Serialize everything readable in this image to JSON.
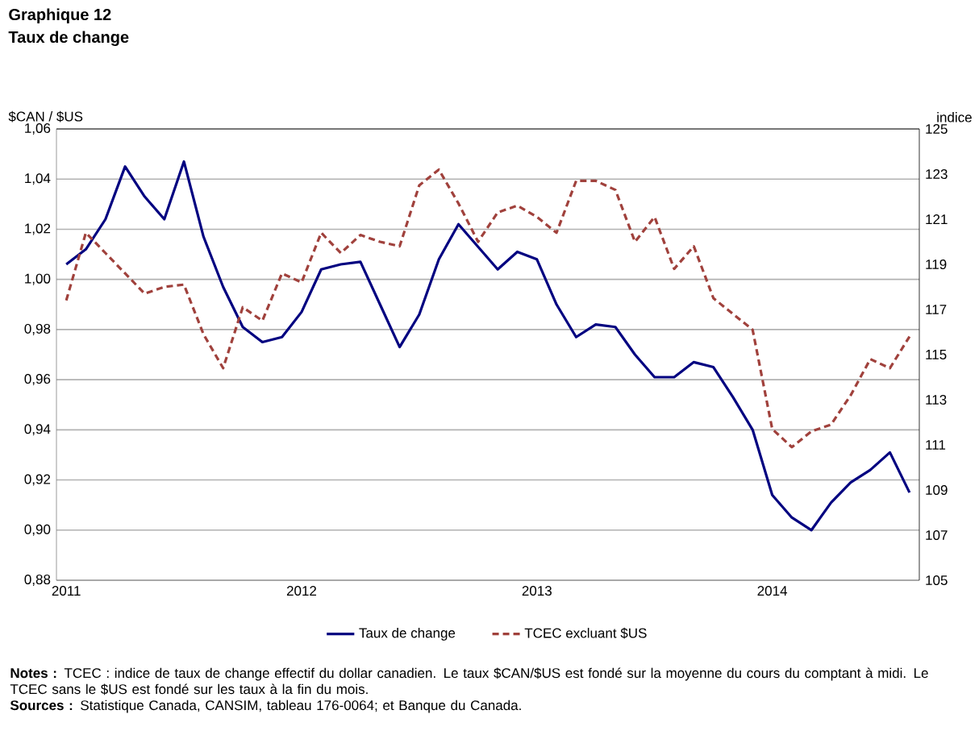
{
  "chart_data": {
    "type": "line",
    "title": "Graphique 12",
    "subtitle": "Taux de change",
    "ylabel": "$CAN / $US",
    "y2label": "indice",
    "categories": [
      "2011",
      null,
      null,
      null,
      null,
      null,
      null,
      null,
      null,
      null,
      null,
      null,
      "2012",
      null,
      null,
      null,
      null,
      null,
      null,
      null,
      null,
      null,
      null,
      null,
      "2013",
      null,
      null,
      null,
      null,
      null,
      null,
      null,
      null,
      null,
      null,
      null,
      "2014",
      null,
      null,
      null,
      null,
      null,
      null,
      null
    ],
    "series": [
      {
        "name": "Taux de change",
        "color": "#000080",
        "line_style": "solid",
        "values": [
          1.006,
          1.012,
          1.024,
          1.045,
          1.033,
          1.024,
          1.047,
          1.017,
          0.997,
          0.981,
          0.975,
          0.977,
          0.987,
          1.004,
          1.006,
          1.007,
          0.99,
          0.973,
          0.986,
          1.008,
          1.022,
          1.013,
          1.004,
          1.011,
          1.008,
          0.99,
          0.977,
          0.982,
          0.981,
          0.97,
          0.961,
          0.961,
          0.967,
          0.965,
          0.953,
          0.94,
          0.914,
          0.905,
          0.9,
          0.911,
          0.919,
          0.924,
          0.931,
          0.915
        ]
      },
      {
        "name": "TCEC excluant $US",
        "color": "#a0413c",
        "line_style": "dashed",
        "axis": "y2",
        "values": [
          117.4,
          120.4,
          119.5,
          118.6,
          117.7,
          118.0,
          118.1,
          115.9,
          114.4,
          117.1,
          116.5,
          118.6,
          118.2,
          120.4,
          119.5,
          120.3,
          120.0,
          119.8,
          122.5,
          123.2,
          121.7,
          120.0,
          121.3,
          121.6,
          121.1,
          120.4,
          122.7,
          122.7,
          122.3,
          120.0,
          121.1,
          118.8,
          119.8,
          117.5,
          116.8,
          116.1,
          111.7,
          110.9,
          111.6,
          111.9,
          113.2,
          114.8,
          114.4,
          115.8
        ]
      }
    ],
    "ylim": [
      0.88,
      1.06
    ],
    "yticks": [
      {
        "value": 0.88,
        "label": "0,88"
      },
      {
        "value": 0.9,
        "label": "0,90"
      },
      {
        "value": 0.92,
        "label": "0,92"
      },
      {
        "value": 0.94,
        "label": "0,94"
      },
      {
        "value": 0.96,
        "label": "0,96"
      },
      {
        "value": 0.98,
        "label": "0,98"
      },
      {
        "value": 1.0,
        "label": "1,00"
      },
      {
        "value": 1.02,
        "label": "1,02"
      },
      {
        "value": 1.04,
        "label": "1,04"
      },
      {
        "value": 1.06,
        "label": "1,06"
      }
    ],
    "y2lim": [
      105,
      125
    ],
    "y2ticks": [
      105,
      107,
      109,
      111,
      113,
      115,
      117,
      119,
      121,
      123,
      125
    ],
    "grid": "y",
    "legend": "bottom",
    "marker": "none",
    "annotations": [
      "**Notes :** TCEC : indice de taux de change effectif du dollar canadien. Le taux $CAN/$US est fondé sur la moyenne du cours du comptant à midi. Le TCEC sans le $US est fondé sur les taux à la fin du mois.",
      "**Sources :** Statistique Canada, CANSIM, tableau 176-0064; et Banque du Canada."
    ]
  }
}
